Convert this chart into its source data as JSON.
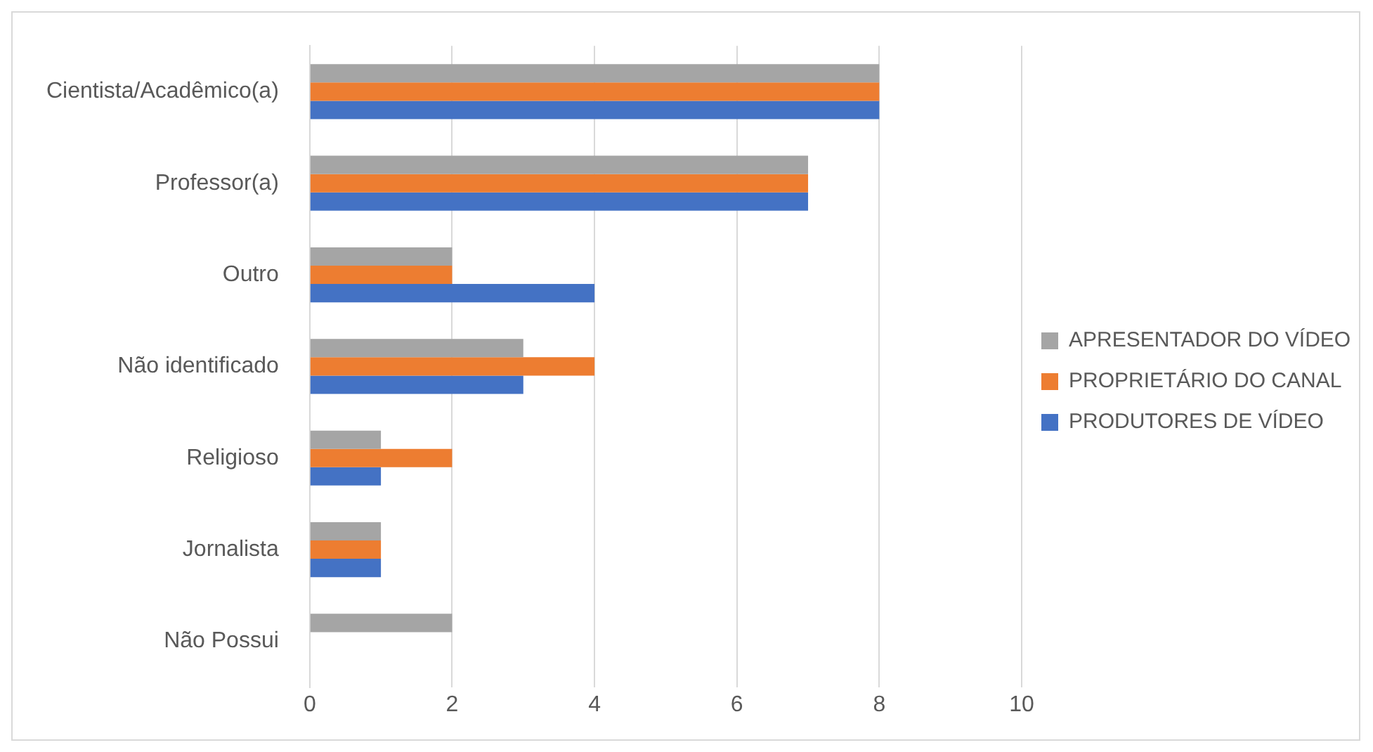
{
  "chart_data": {
    "type": "bar",
    "orientation": "horizontal",
    "categories": [
      "Cientista/Acadêmico(a)",
      "Professor(a)",
      "Outro",
      "Não identificado",
      "Religioso",
      "Jornalista",
      "Não Possui"
    ],
    "series": [
      {
        "name": "APRESENTADOR DO VÍDEO",
        "color": "#a5a5a5",
        "values": [
          8,
          7,
          2,
          3,
          1,
          1,
          2
        ]
      },
      {
        "name": "PROPRIETÁRIO DO CANAL",
        "color": "#ed7d31",
        "values": [
          8,
          7,
          2,
          4,
          2,
          1,
          0
        ]
      },
      {
        "name": "PRODUTORES DE VÍDEO",
        "color": "#4472c4",
        "values": [
          8,
          7,
          4,
          3,
          1,
          1,
          0
        ]
      }
    ],
    "xlim": [
      0,
      10
    ],
    "xticks": [
      0,
      2,
      4,
      6,
      8,
      10
    ],
    "grid": "x",
    "legend": "right"
  }
}
